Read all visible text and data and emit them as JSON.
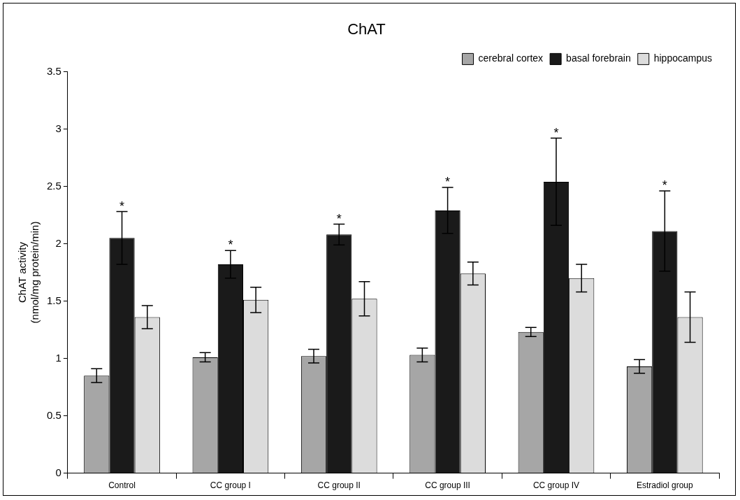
{
  "chart_data": {
    "type": "bar",
    "title": "ChAT",
    "ylabel": "ChAT activity\n(nmol/mg protein/min)",
    "categories": [
      "Control",
      "CC group I",
      "CC group II",
      "CC group III",
      "CC group IV",
      "Estradiol group"
    ],
    "series": [
      {
        "name": "cerebral cortex",
        "color": "#a6a6a6",
        "values": [
          0.85,
          1.01,
          1.02,
          1.03,
          1.23,
          0.93
        ],
        "errors": [
          0.06,
          0.04,
          0.06,
          0.06,
          0.04,
          0.06
        ]
      },
      {
        "name": "basal forebrain",
        "color": "#1a1a1a",
        "values": [
          2.05,
          1.82,
          2.08,
          2.29,
          2.54,
          2.11
        ],
        "errors": [
          0.23,
          0.12,
          0.09,
          0.2,
          0.38,
          0.35
        ]
      },
      {
        "name": "hippocampus",
        "color": "#dcdcdc",
        "values": [
          1.36,
          1.51,
          1.52,
          1.74,
          1.7,
          1.36
        ],
        "errors": [
          0.1,
          0.11,
          0.15,
          0.1,
          0.12,
          0.22
        ]
      }
    ],
    "annotations": [
      {
        "text": "*",
        "x": "Control",
        "y": 2.28
      },
      {
        "text": "*",
        "x": "CC group I",
        "y": 1.94
      },
      {
        "text": "*",
        "x": "CC group II",
        "y": 2.17
      },
      {
        "text": "*",
        "x": "CC group III",
        "y": 2.49
      },
      {
        "text": "*",
        "x": "CC group IV",
        "y": 2.92
      },
      {
        "text": "*",
        "x": "Estradiol group",
        "y": 2.46
      }
    ],
    "ylim": [
      0,
      3.5
    ],
    "yticks": [
      0,
      0.5,
      1,
      1.5,
      2,
      2.5,
      3,
      3.5
    ],
    "grid": false,
    "legend": "top right"
  }
}
